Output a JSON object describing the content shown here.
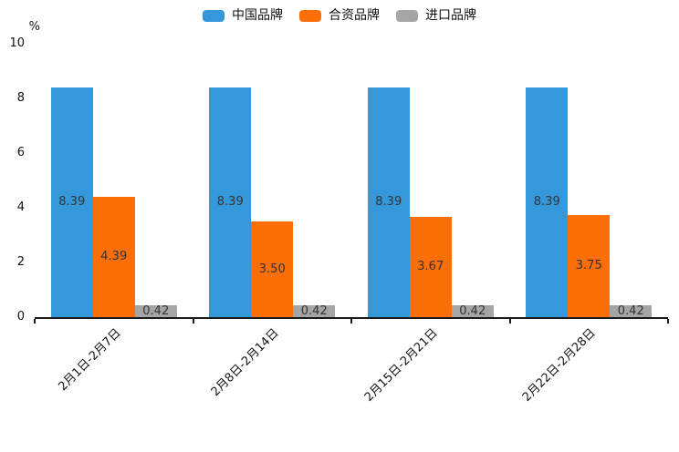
{
  "chart_data": {
    "type": "bar",
    "title": "",
    "categories": [
      "2月1日-2月7日",
      "2月8日-2月14日",
      "2月15日-2月21日",
      "2月22日-2月28日"
    ],
    "series": [
      {
        "name": "中国品牌",
        "color": "#3498DB",
        "values": [
          8.39,
          8.39,
          8.39,
          8.39
        ]
      },
      {
        "name": "合资品牌",
        "color": "#FC6E08",
        "values": [
          4.39,
          3.5,
          3.67,
          3.75
        ]
      },
      {
        "name": "进口品牌",
        "color": "#A5A5A5",
        "values": [
          0.42,
          0.42,
          0.42,
          0.42
        ]
      }
    ],
    "xlabel": "",
    "ylabel": "%",
    "ylim": [
      0,
      10
    ],
    "yticks": [
      0,
      2,
      4,
      6,
      8,
      10
    ],
    "value_labels": true,
    "value_label_format": "2dp",
    "grid": false,
    "legend_position": "top-center",
    "xtick_rotation_deg": 45
  }
}
